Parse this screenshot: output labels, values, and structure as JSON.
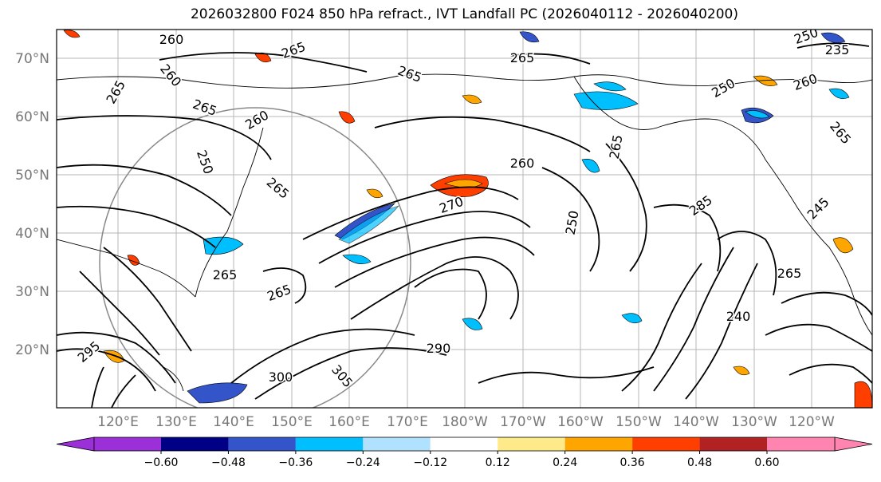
{
  "title": "2026032800 F024 850 hPa refract., IVT Landfall PC (2026040112 - 2026040200)",
  "lat_ticks": [
    "70°N",
    "60°N",
    "50°N",
    "40°N",
    "30°N",
    "20°N"
  ],
  "lon_ticks": [
    "120°E",
    "130°E",
    "140°E",
    "150°E",
    "160°E",
    "170°E",
    "180°W",
    "170°W",
    "160°W",
    "150°W",
    "140°W",
    "130°W",
    "120°W"
  ],
  "colorbar": {
    "colors": [
      "#9b30d9",
      "#000087",
      "#3455c9",
      "#00bfff",
      "#b0e2ff",
      "#ffffff",
      "#ffea8a",
      "#ffa500",
      "#ff3f00",
      "#b22222",
      "#ff85b0"
    ],
    "ticks": [
      "−0.60",
      "−0.48",
      "−0.36",
      "−0.24",
      "−0.12",
      "0.12",
      "0.24",
      "0.36",
      "0.48",
      "0.60"
    ]
  },
  "contour_labels": [
    "260",
    "265",
    "260",
    "265",
    "265",
    "260",
    "265",
    "265",
    "250",
    "265",
    "265",
    "265",
    "260",
    "265",
    "270",
    "250",
    "285",
    "245",
    "265",
    "250",
    "235",
    "250",
    "265",
    "260",
    "300",
    "240",
    "290",
    "295",
    "305"
  ]
}
